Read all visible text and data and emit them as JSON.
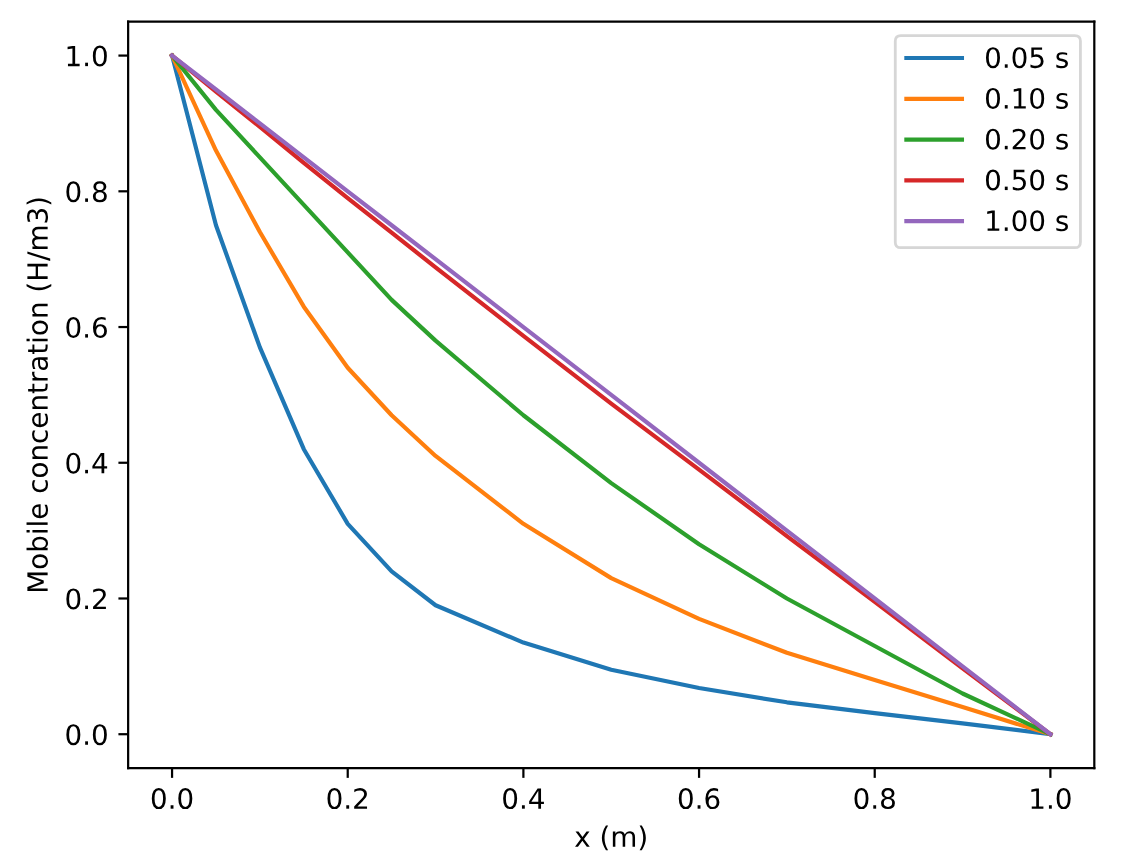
{
  "chart_data": {
    "type": "line",
    "xlabel": "x (m)",
    "ylabel": "Mobile concentration (H/m3)",
    "xlim": [
      -0.05,
      1.05
    ],
    "ylim": [
      -0.05,
      1.05
    ],
    "xticks": [
      {
        "value": 0,
        "label": "0.0"
      },
      {
        "value": 0.2,
        "label": "0.2"
      },
      {
        "value": 0.4,
        "label": "0.4"
      },
      {
        "value": 0.6,
        "label": "0.6"
      },
      {
        "value": 0.8,
        "label": "0.8"
      },
      {
        "value": 1,
        "label": "1.0"
      }
    ],
    "yticks": [
      {
        "value": 0,
        "label": "0.0"
      },
      {
        "value": 0.2,
        "label": "0.2"
      },
      {
        "value": 0.4,
        "label": "0.4"
      },
      {
        "value": 0.6,
        "label": "0.6"
      },
      {
        "value": 0.8,
        "label": "0.8"
      },
      {
        "value": 1,
        "label": "1.0"
      }
    ],
    "x": [
      0,
      0.05,
      0.1,
      0.15,
      0.2,
      0.25,
      0.3,
      0.4,
      0.5,
      0.6,
      0.7,
      0.8,
      0.9,
      1.0
    ],
    "series": [
      {
        "name": "0.05 s",
        "color": "#1f77b4",
        "values": [
          1,
          0.75,
          0.57,
          0.42,
          0.31,
          0.24,
          0.19,
          0.135,
          0.095,
          0.068,
          0.047,
          0.031,
          0.016,
          0
        ]
      },
      {
        "name": "0.10 s",
        "color": "#ff7f0e",
        "values": [
          1,
          0.86,
          0.74,
          0.63,
          0.54,
          0.47,
          0.41,
          0.31,
          0.23,
          0.17,
          0.12,
          0.08,
          0.04,
          0
        ]
      },
      {
        "name": "0.20 s",
        "color": "#2ca02c",
        "values": [
          1,
          0.92,
          0.85,
          0.78,
          0.71,
          0.64,
          0.58,
          0.47,
          0.37,
          0.28,
          0.2,
          0.13,
          0.06,
          0
        ]
      },
      {
        "name": "0.50 s",
        "color": "#d62728",
        "values": [
          1,
          0.947,
          0.895,
          0.842,
          0.79,
          0.739,
          0.688,
          0.587,
          0.487,
          0.39,
          0.292,
          0.195,
          0.097,
          0
        ]
      },
      {
        "name": "1.00 s",
        "color": "#9467bd",
        "values": [
          1,
          0.95,
          0.9,
          0.85,
          0.8,
          0.75,
          0.7,
          0.6,
          0.5,
          0.4,
          0.3,
          0.2,
          0.1,
          0
        ]
      }
    ],
    "legend": "top right",
    "grid": false,
    "marker": "none",
    "line_style": "solid"
  }
}
